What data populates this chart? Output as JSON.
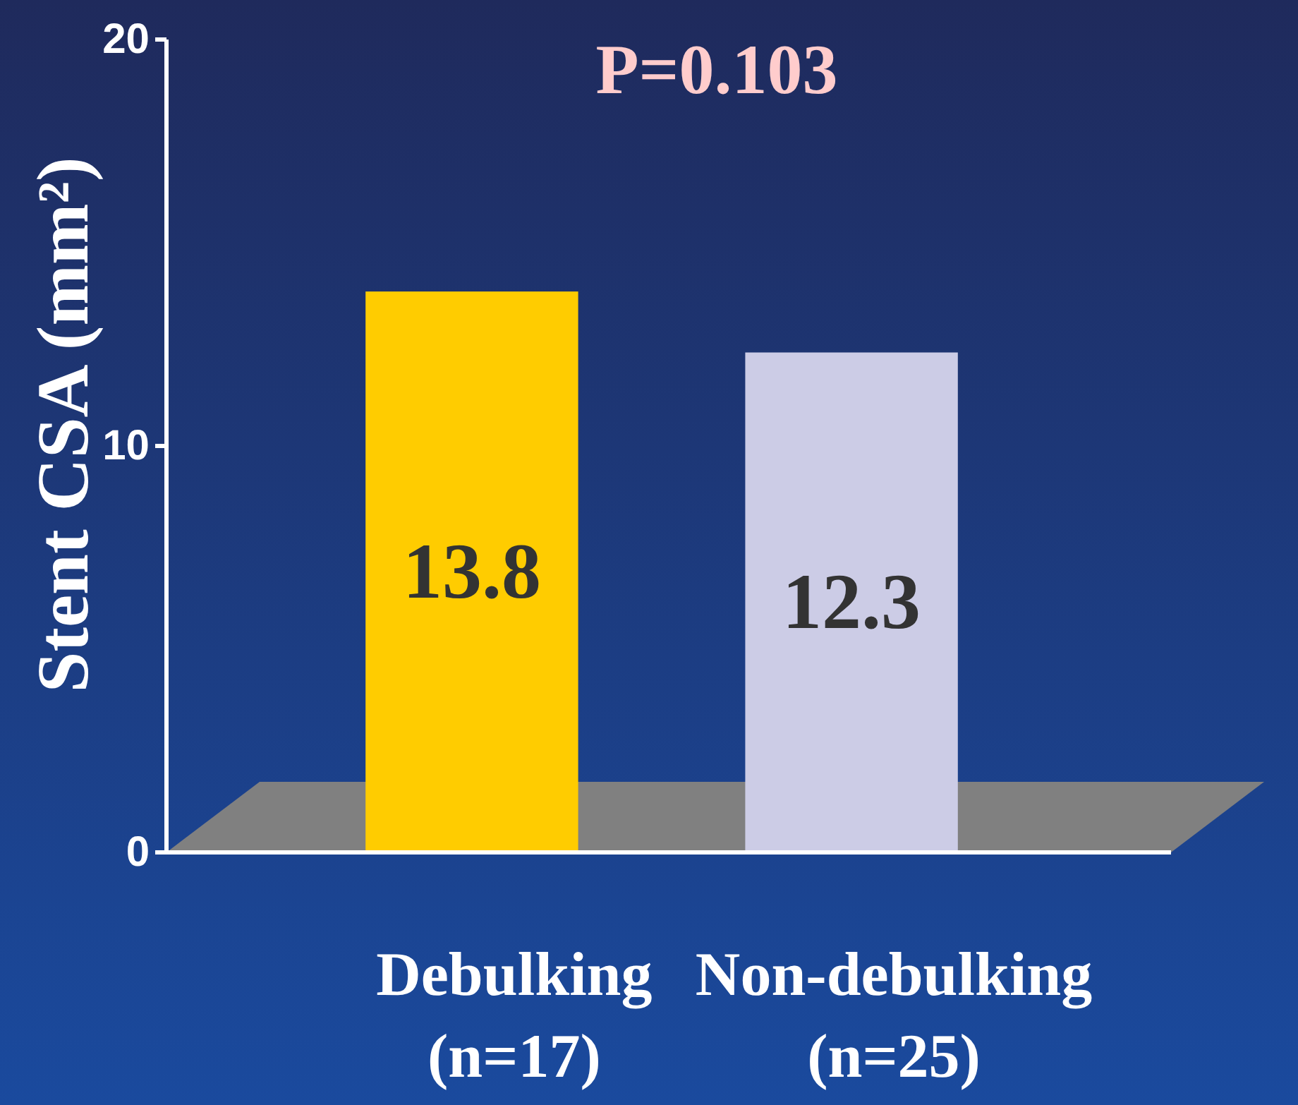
{
  "chart_data": {
    "type": "bar",
    "title": "P=0.103",
    "ylabel": "Stent CSA (mm²)",
    "categories": [
      "Debulking\n(n=17)",
      "Non-debulking\n(n=25)"
    ],
    "values": [
      13.8,
      12.3
    ],
    "colors": [
      "#ffcc00",
      "#cccce6"
    ],
    "ylim": [
      0,
      20
    ],
    "yticks": [
      0,
      10,
      20
    ],
    "data_labels": true
  }
}
